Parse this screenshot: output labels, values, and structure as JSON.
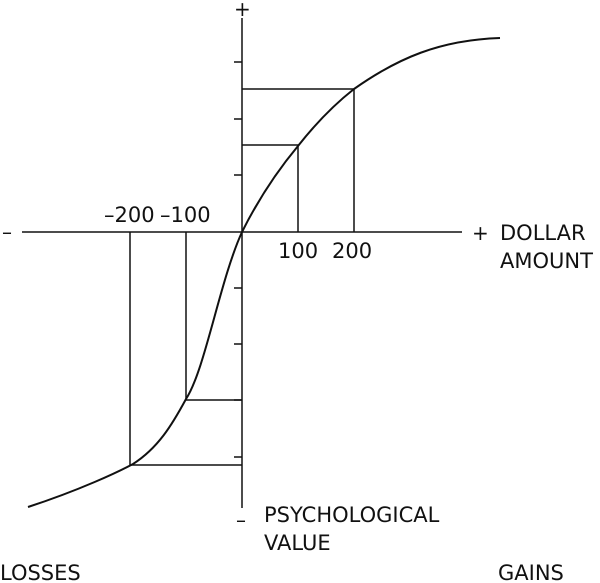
{
  "diagram": {
    "x_axis": {
      "negative_sign": "–",
      "positive_sign": "+",
      "label_line1": "DOLLAR",
      "label_line2": "AMOUNT",
      "ticks": [
        "–200",
        "–100",
        "100",
        "200"
      ]
    },
    "y_axis": {
      "positive_sign": "+",
      "negative_sign": "–",
      "label_line1": "PSYCHOLOGICAL",
      "label_line2": "VALUE"
    },
    "region_left": "LOSSES",
    "region_right": "GAINS"
  }
}
